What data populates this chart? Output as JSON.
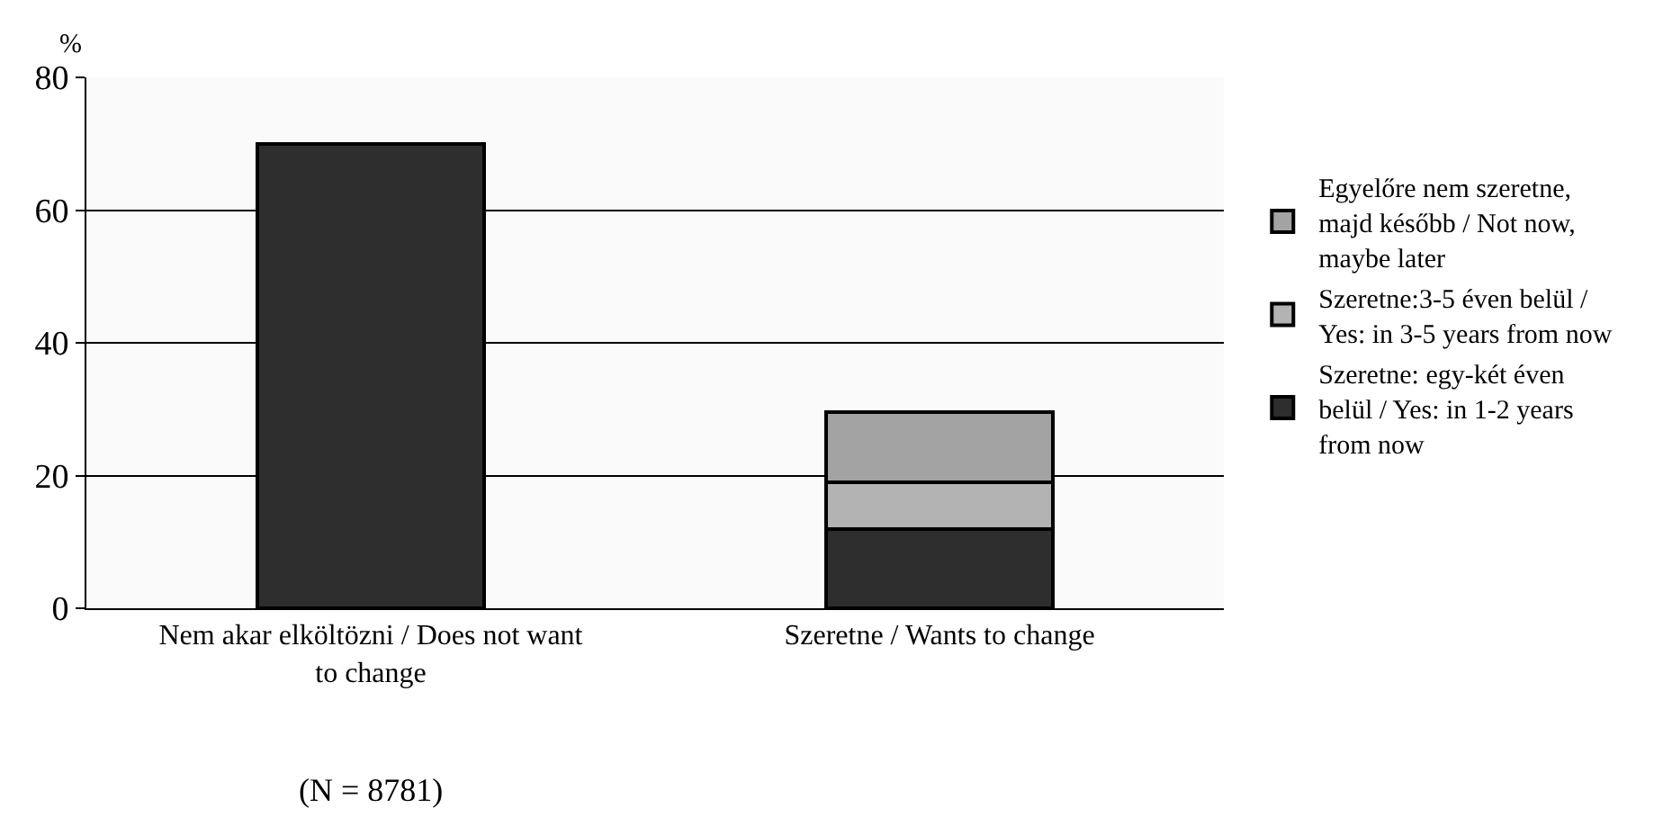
{
  "chart_data": {
    "type": "bar",
    "stacked": true,
    "ylabel": "%",
    "categories": [
      "Nem akar elköltözni / Does not want to change",
      "Szeretne / Wants to change"
    ],
    "series": [
      {
        "color": "#2e2e2e",
        "values": [
          70,
          null
        ]
      },
      {
        "name": "Szeretne: egy-két éven belül / Yes: in 1-2 years from now",
        "color": "#2e2e2e",
        "values": [
          null,
          12
        ]
      },
      {
        "name": "Szeretne:3-5 éven belül / Yes: in 3-5 years from now",
        "color": "#b3b3b3",
        "values": [
          null,
          7
        ]
      },
      {
        "name": "Egyelőre nem szeretne, majd később / Not now, maybe later",
        "color": "#a3a3a3",
        "values": [
          null,
          10.5
        ]
      }
    ],
    "ylim": [
      0,
      80
    ],
    "yticks": [
      0,
      20,
      40,
      60,
      80
    ],
    "grid": "y",
    "legend": "right",
    "annotations": [
      "(N = 8781)"
    ]
  }
}
